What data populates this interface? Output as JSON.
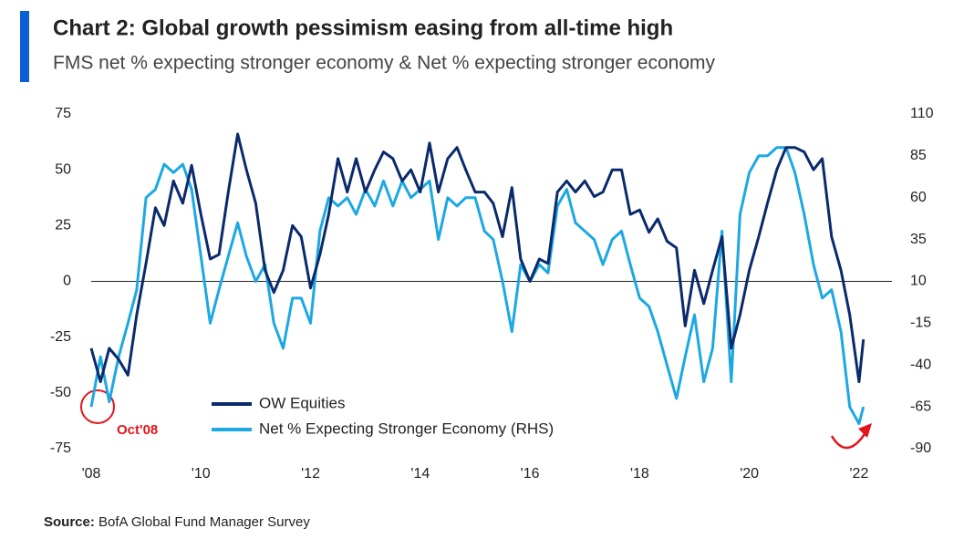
{
  "chart_data": {
    "type": "line",
    "title": "Chart 2: Global growth pessimism easing from all-time high",
    "subtitle": "FMS net % expecting stronger economy & Net % expecting stronger economy",
    "source_label": "Source:",
    "source": "BofA Global Fund Manager Survey",
    "annotation": "Oct'08",
    "legend": "lower center",
    "x": [
      2008,
      2008.17,
      2008.33,
      2008.5,
      2008.67,
      2008.83,
      2009,
      2009.17,
      2009.33,
      2009.5,
      2009.67,
      2009.83,
      2010,
      2010.17,
      2010.33,
      2010.5,
      2010.67,
      2010.83,
      2011,
      2011.17,
      2011.33,
      2011.5,
      2011.67,
      2011.83,
      2012,
      2012.17,
      2012.33,
      2012.5,
      2012.67,
      2012.83,
      2013,
      2013.17,
      2013.33,
      2013.5,
      2013.67,
      2013.83,
      2014,
      2014.17,
      2014.33,
      2014.5,
      2014.67,
      2014.83,
      2015,
      2015.17,
      2015.33,
      2015.5,
      2015.67,
      2015.83,
      2016,
      2016.17,
      2016.33,
      2016.5,
      2016.67,
      2016.83,
      2017,
      2017.17,
      2017.33,
      2017.5,
      2017.67,
      2017.83,
      2018,
      2018.17,
      2018.33,
      2018.5,
      2018.67,
      2018.83,
      2019,
      2019.17,
      2019.33,
      2019.5,
      2019.67,
      2019.83,
      2020,
      2020.17,
      2020.33,
      2020.5,
      2020.67,
      2020.83,
      2021,
      2021.17,
      2021.33,
      2021.5,
      2021.67,
      2021.83,
      2022,
      2022.08
    ],
    "series": [
      {
        "name": "OW Equities",
        "color": "#0b2a6b",
        "axis": "y",
        "values": [
          -30,
          -45,
          -30,
          -35,
          -42,
          -15,
          8,
          33,
          25,
          45,
          35,
          52,
          30,
          10,
          12,
          40,
          66,
          50,
          35,
          5,
          -5,
          5,
          25,
          20,
          -3,
          12,
          30,
          55,
          40,
          55,
          40,
          50,
          58,
          55,
          45,
          50,
          40,
          62,
          40,
          55,
          60,
          50,
          40,
          40,
          35,
          20,
          42,
          10,
          0,
          10,
          8,
          40,
          45,
          40,
          45,
          38,
          40,
          50,
          50,
          30,
          32,
          22,
          28,
          18,
          15,
          -20,
          5,
          -10,
          5,
          20,
          -30,
          -15,
          5,
          20,
          35,
          50,
          60,
          60,
          58,
          50,
          55,
          20,
          5,
          -15,
          -45,
          -26
        ]
      },
      {
        "name": "Net % Expecting Stronger Economy (RHS)",
        "color": "#1ca8e3",
        "axis": "y2",
        "values": [
          -65,
          -35,
          -62,
          -35,
          -15,
          5,
          60,
          65,
          80,
          75,
          80,
          65,
          25,
          -15,
          5,
          25,
          45,
          25,
          10,
          20,
          -15,
          -30,
          0,
          0,
          -15,
          40,
          60,
          55,
          60,
          50,
          65,
          55,
          70,
          55,
          70,
          60,
          65,
          70,
          35,
          60,
          55,
          60,
          60,
          40,
          35,
          10,
          -20,
          20,
          10,
          20,
          15,
          55,
          65,
          45,
          40,
          35,
          20,
          35,
          40,
          20,
          0,
          -5,
          -20,
          -40,
          -60,
          -35,
          -10,
          -50,
          -30,
          40,
          -50,
          50,
          75,
          85,
          85,
          90,
          90,
          75,
          50,
          20,
          0,
          5,
          -20,
          -65,
          -75,
          -65
        ]
      }
    ],
    "xlim": [
      2008,
      2022.6
    ],
    "xticks": [
      {
        "value": 2008,
        "label": "'08"
      },
      {
        "value": 2010,
        "label": "'10"
      },
      {
        "value": 2012,
        "label": "'12"
      },
      {
        "value": 2014,
        "label": "'14"
      },
      {
        "value": 2016,
        "label": "'16"
      },
      {
        "value": 2018,
        "label": "'18"
      },
      {
        "value": 2020,
        "label": "'20"
      },
      {
        "value": 2022,
        "label": "'22"
      }
    ],
    "ylim": [
      -75,
      75
    ],
    "yticks": [
      -75,
      -50,
      -25,
      0,
      25,
      50,
      75
    ],
    "y2lim": [
      -90,
      110
    ],
    "y2ticks": [
      -90,
      -65,
      -40,
      -15,
      10,
      35,
      60,
      85,
      110
    ]
  }
}
